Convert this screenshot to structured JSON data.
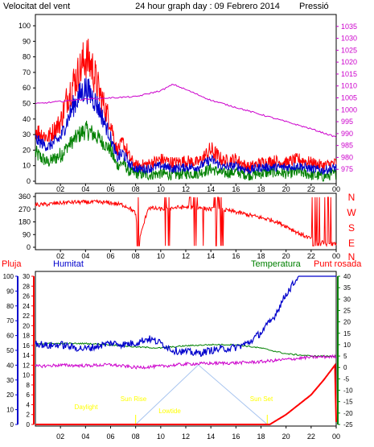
{
  "header": {
    "left_label": "Velocitat del vent",
    "title": "24 hour graph day : 09 Febrero 2014",
    "right_label": "Pressió"
  },
  "colors": {
    "wind_gust": "#ff0000",
    "wind_avg": "#0000cc",
    "wind_low": "#008000",
    "pressure": "#cc00cc",
    "direction": "#ff0000",
    "humidity": "#0000cc",
    "temperature": "#008000",
    "dewpoint": "#cc00cc",
    "rain": "#ff0000",
    "sun": "#a7c4ef",
    "day_label": "#ffff00",
    "axis_blue": "#0000cc",
    "axis_green": "#008000",
    "axis_magenta": "#cc00cc",
    "axis_red": "#ff0000"
  },
  "chart_data": [
    {
      "type": "line",
      "id": "wind_pressure",
      "x_ticks": [
        "02",
        "04",
        "06",
        "08",
        "10",
        "12",
        "14",
        "16",
        "18",
        "20",
        "22",
        "00"
      ],
      "y_left": {
        "label": "Velocitat del vent",
        "range": [
          0,
          100
        ],
        "ticks": [
          0,
          10,
          20,
          30,
          40,
          50,
          60,
          70,
          80,
          90,
          100
        ]
      },
      "y_right": {
        "label": "Pressió",
        "range": [
          970,
          1040
        ],
        "ticks": [
          975,
          980,
          985,
          990,
          995,
          1000,
          1005,
          1010,
          1015,
          1020,
          1025,
          1030,
          1035,
          1040
        ]
      },
      "series": [
        {
          "key": "gust",
          "hours": [
            0,
            1,
            2,
            2.5,
            3,
            3.5,
            4,
            4.5,
            5,
            5.5,
            6,
            6.5,
            7,
            7.5,
            8,
            9,
            10,
            11,
            12,
            13,
            14,
            15,
            16,
            17,
            18,
            19,
            20,
            21,
            22,
            23,
            24
          ],
          "values": [
            33,
            28,
            38,
            53,
            63,
            70,
            80,
            74,
            60,
            48,
            38,
            20,
            25,
            15,
            10,
            11,
            14,
            12,
            13,
            12,
            20,
            13,
            14,
            9,
            12,
            13,
            12,
            14,
            12,
            10,
            12
          ]
        },
        {
          "key": "avg",
          "hours": [
            0,
            1,
            2,
            2.5,
            3,
            3.5,
            4,
            4.5,
            5,
            5.5,
            6,
            6.5,
            7,
            7.5,
            8,
            9,
            10,
            11,
            12,
            13,
            14,
            15,
            16,
            17,
            18,
            19,
            20,
            21,
            22,
            23,
            24
          ],
          "values": [
            27,
            22,
            28,
            38,
            48,
            55,
            60,
            55,
            48,
            38,
            28,
            15,
            18,
            11,
            8,
            8,
            10,
            8,
            9,
            9,
            14,
            9,
            10,
            7,
            9,
            9,
            9,
            10,
            8,
            7,
            9
          ]
        },
        {
          "key": "low",
          "hours": [
            0,
            1,
            2,
            2.5,
            3,
            3.5,
            4,
            4.5,
            5,
            5.5,
            6,
            6.5,
            7,
            7.5,
            8,
            9,
            10,
            11,
            12,
            13,
            14,
            15,
            16,
            17,
            18,
            19,
            20,
            21,
            22,
            23,
            24
          ],
          "values": [
            18,
            12,
            17,
            22,
            26,
            30,
            33,
            31,
            28,
            24,
            20,
            10,
            12,
            6,
            5,
            4,
            5,
            4,
            5,
            5,
            8,
            5,
            6,
            4,
            5,
            6,
            5,
            6,
            4,
            3,
            5
          ]
        },
        {
          "key": "pressure",
          "hours": [
            0,
            2,
            4,
            6,
            8,
            10,
            11,
            12,
            14,
            16,
            18,
            20,
            22,
            24
          ],
          "values": [
            1002.5,
            1003.5,
            1004.5,
            1005,
            1005.5,
            1008,
            1010.7,
            1008.5,
            1004,
            1001,
            998,
            995,
            992,
            988.5
          ]
        }
      ]
    },
    {
      "type": "line",
      "id": "wind_direction",
      "x_ticks": [
        "02",
        "04",
        "06",
        "08",
        "10",
        "12",
        "14",
        "16",
        "18",
        "20",
        "22",
        "00"
      ],
      "y_left": {
        "ticks": [
          0,
          90,
          180,
          270,
          360
        ],
        "range": [
          0,
          360
        ]
      },
      "y_right": {
        "letters": [
          "N",
          "W",
          "S",
          "E",
          "N"
        ]
      },
      "series": [
        {
          "key": "direction",
          "hours": [
            0,
            1,
            2,
            3,
            4,
            5,
            6,
            7,
            7.5,
            8,
            8.2,
            9,
            10,
            11,
            12,
            13,
            14,
            15,
            16,
            17,
            18,
            19,
            20,
            21,
            22,
            23,
            24
          ],
          "values": [
            300,
            305,
            315,
            320,
            320,
            320,
            315,
            300,
            280,
            240,
            20,
            280,
            270,
            280,
            285,
            280,
            270,
            265,
            250,
            230,
            210,
            190,
            150,
            100,
            60,
            30,
            20
          ]
        }
      ]
    },
    {
      "type": "line",
      "id": "humidity_temp_rain",
      "legend": [
        "Pluja",
        "Humitat",
        "Temperatura",
        "Punt rosada"
      ],
      "x_ticks": [
        "02",
        "04",
        "06",
        "08",
        "10",
        "12",
        "14",
        "16",
        "18",
        "20",
        "22",
        "00"
      ],
      "axis_pluja": {
        "label": "Pluja",
        "ticks": [
          0,
          2,
          4,
          6,
          8,
          10,
          12,
          14,
          16,
          18,
          20,
          22,
          24,
          26,
          28,
          30
        ]
      },
      "axis_humitat": {
        "label": "Humitat",
        "ticks": [
          0,
          10,
          20,
          30,
          40,
          50,
          60,
          70,
          80,
          90,
          100
        ]
      },
      "axis_temperatura": {
        "label": "Temperatura",
        "ticks": [
          -25,
          -20,
          -15,
          -10,
          -5,
          0,
          5,
          10,
          15,
          20,
          25,
          30,
          35,
          40
        ]
      },
      "annotations": [
        "Daylight",
        "Sun Rise",
        "Lowtide",
        "Sun Set"
      ],
      "series": [
        {
          "key": "humidity",
          "hours": [
            0,
            1,
            2,
            3,
            4,
            5,
            6,
            7,
            8,
            9,
            10,
            11,
            12,
            13,
            14,
            15,
            16,
            17,
            18,
            19,
            20,
            21,
            22,
            23,
            24
          ],
          "values": [
            55,
            53,
            54,
            52,
            51,
            53,
            55,
            54,
            55,
            58,
            55,
            50,
            49,
            48,
            50,
            51,
            52,
            55,
            62,
            72,
            88,
            100,
            100,
            100,
            100
          ]
        },
        {
          "key": "temperature",
          "hours": [
            0,
            2,
            4,
            6,
            8,
            10,
            12,
            14,
            16,
            18,
            20,
            22,
            24
          ],
          "values": [
            10.5,
            10.5,
            10.5,
            10,
            9,
            8.5,
            9.5,
            10,
            10,
            8.5,
            6,
            5,
            5
          ]
        },
        {
          "key": "dewpoint",
          "hours": [
            0,
            2,
            4,
            6,
            8,
            10,
            12,
            14,
            16,
            18,
            20,
            22,
            24
          ],
          "values": [
            0.5,
            1,
            0.8,
            1.2,
            0,
            0.5,
            1.5,
            1.8,
            2,
            2.5,
            3.5,
            4.5,
            4.8
          ]
        },
        {
          "key": "rain",
          "hours": [
            0,
            8,
            16,
            18.7,
            20,
            21,
            22,
            23,
            23.9,
            24
          ],
          "values": [
            0,
            0,
            0,
            0,
            2,
            4,
            6,
            9,
            12,
            0.5
          ]
        },
        {
          "key": "sun_elevation",
          "hours": [
            8,
            13,
            18.5
          ],
          "values": [
            0,
            1,
            0
          ]
        }
      ]
    }
  ]
}
